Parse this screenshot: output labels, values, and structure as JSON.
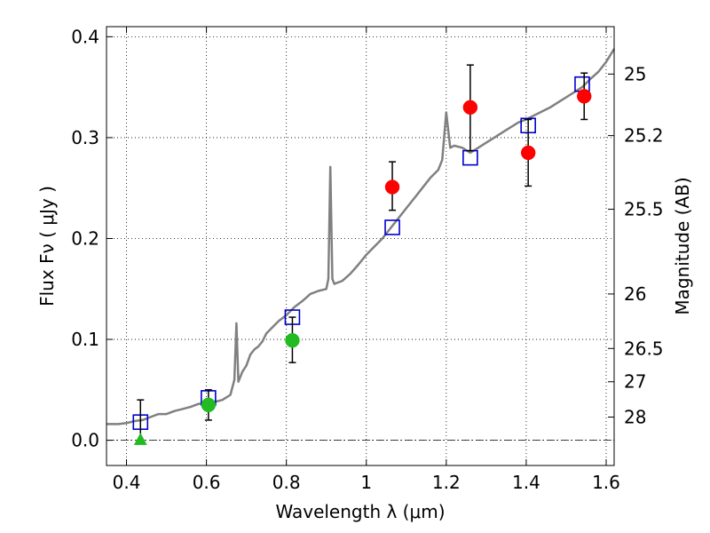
{
  "chart_data": {
    "type": "scatter",
    "xlabel": "Wavelength  λ (μm)",
    "ylabel": "Flux  Fν  ( μJy )",
    "y2label": "Magnitude (AB)",
    "xlim": [
      0.35,
      1.62
    ],
    "ylim": [
      -0.025,
      0.41
    ],
    "grid": true,
    "x_ticks": [
      0.4,
      0.6,
      0.8,
      1.0,
      1.2,
      1.4,
      1.6
    ],
    "x_tick_labels": [
      "0.4",
      "0.6",
      "0.8",
      "1",
      "1.2",
      "1.4",
      "1.6"
    ],
    "y_ticks": [
      0.0,
      0.1,
      0.2,
      0.3,
      0.4
    ],
    "y_tick_labels": [
      "0.0",
      "0.1",
      "0.2",
      "0.3",
      "0.4"
    ],
    "mag_ticks": [
      {
        "label": "25",
        "flux": 0.363
      },
      {
        "label": "25.2",
        "flux": 0.302
      },
      {
        "label": "25.5",
        "flux": 0.229
      },
      {
        "label": "26",
        "flux": 0.145
      },
      {
        "label": "26.5",
        "flux": 0.091
      },
      {
        "label": "27",
        "flux": 0.058
      },
      {
        "label": "28",
        "flux": 0.023
      }
    ],
    "zero_line": 0.0,
    "series": [
      {
        "kind": "line",
        "color": "#808080",
        "points": [
          [
            0.35,
            0.016
          ],
          [
            0.38,
            0.016
          ],
          [
            0.4,
            0.017
          ],
          [
            0.42,
            0.019
          ],
          [
            0.44,
            0.02
          ],
          [
            0.46,
            0.023
          ],
          [
            0.48,
            0.026
          ],
          [
            0.5,
            0.026
          ],
          [
            0.52,
            0.029
          ],
          [
            0.54,
            0.031
          ],
          [
            0.56,
            0.033
          ],
          [
            0.58,
            0.036
          ],
          [
            0.6,
            0.037
          ],
          [
            0.62,
            0.038
          ],
          [
            0.64,
            0.04
          ],
          [
            0.66,
            0.045
          ],
          [
            0.67,
            0.06
          ],
          [
            0.675,
            0.116
          ],
          [
            0.68,
            0.058
          ],
          [
            0.69,
            0.068
          ],
          [
            0.7,
            0.074
          ],
          [
            0.71,
            0.085
          ],
          [
            0.72,
            0.09
          ],
          [
            0.73,
            0.093
          ],
          [
            0.74,
            0.098
          ],
          [
            0.75,
            0.106
          ],
          [
            0.76,
            0.11
          ],
          [
            0.78,
            0.118
          ],
          [
            0.8,
            0.124
          ],
          [
            0.82,
            0.132
          ],
          [
            0.84,
            0.138
          ],
          [
            0.86,
            0.145
          ],
          [
            0.88,
            0.148
          ],
          [
            0.9,
            0.15
          ],
          [
            0.905,
            0.16
          ],
          [
            0.91,
            0.271
          ],
          [
            0.915,
            0.16
          ],
          [
            0.92,
            0.155
          ],
          [
            0.94,
            0.158
          ],
          [
            0.96,
            0.165
          ],
          [
            0.98,
            0.174
          ],
          [
            1.0,
            0.184
          ],
          [
            1.02,
            0.192
          ],
          [
            1.04,
            0.2
          ],
          [
            1.06,
            0.21
          ],
          [
            1.08,
            0.22
          ],
          [
            1.1,
            0.23
          ],
          [
            1.12,
            0.24
          ],
          [
            1.14,
            0.25
          ],
          [
            1.16,
            0.26
          ],
          [
            1.18,
            0.268
          ],
          [
            1.19,
            0.278
          ],
          [
            1.2,
            0.325
          ],
          [
            1.21,
            0.29
          ],
          [
            1.22,
            0.292
          ],
          [
            1.24,
            0.29
          ],
          [
            1.26,
            0.285
          ],
          [
            1.28,
            0.29
          ],
          [
            1.3,
            0.295
          ],
          [
            1.32,
            0.3
          ],
          [
            1.34,
            0.305
          ],
          [
            1.36,
            0.31
          ],
          [
            1.38,
            0.315
          ],
          [
            1.4,
            0.318
          ],
          [
            1.42,
            0.322
          ],
          [
            1.44,
            0.326
          ],
          [
            1.46,
            0.33
          ],
          [
            1.48,
            0.335
          ],
          [
            1.5,
            0.34
          ],
          [
            1.52,
            0.345
          ],
          [
            1.54,
            0.35
          ],
          [
            1.56,
            0.358
          ],
          [
            1.58,
            0.365
          ],
          [
            1.6,
            0.375
          ],
          [
            1.62,
            0.388
          ]
        ]
      },
      {
        "kind": "open-square",
        "color": "#0000cc",
        "points": [
          [
            0.435,
            0.018
          ],
          [
            0.605,
            0.042
          ],
          [
            0.815,
            0.122
          ],
          [
            1.065,
            0.211
          ],
          [
            1.26,
            0.28
          ],
          [
            1.405,
            0.312
          ],
          [
            1.54,
            0.353
          ]
        ]
      },
      {
        "kind": "errorbar",
        "color": "#000000",
        "bars": [
          {
            "x": 0.435,
            "lo": 0.0,
            "hi": 0.04
          },
          {
            "x": 0.605,
            "lo": 0.02,
            "hi": 0.05
          },
          {
            "x": 0.815,
            "lo": 0.077,
            "hi": 0.122
          },
          {
            "x": 1.065,
            "lo": 0.228,
            "hi": 0.276
          },
          {
            "x": 1.26,
            "lo": 0.287,
            "hi": 0.372
          },
          {
            "x": 1.405,
            "lo": 0.252,
            "hi": 0.318
          },
          {
            "x": 1.545,
            "lo": 0.318,
            "hi": 0.364
          }
        ]
      },
      {
        "kind": "circle",
        "color": "#ff0000",
        "points": [
          [
            1.065,
            0.251
          ],
          [
            1.26,
            0.33
          ],
          [
            1.405,
            0.285
          ],
          [
            1.545,
            0.341
          ]
        ]
      },
      {
        "kind": "circle",
        "color": "#22bb22",
        "points": [
          [
            0.605,
            0.035
          ],
          [
            0.815,
            0.099
          ]
        ]
      },
      {
        "kind": "triangle",
        "color": "#22bb22",
        "points": [
          [
            0.435,
            0.0
          ]
        ]
      }
    ]
  }
}
